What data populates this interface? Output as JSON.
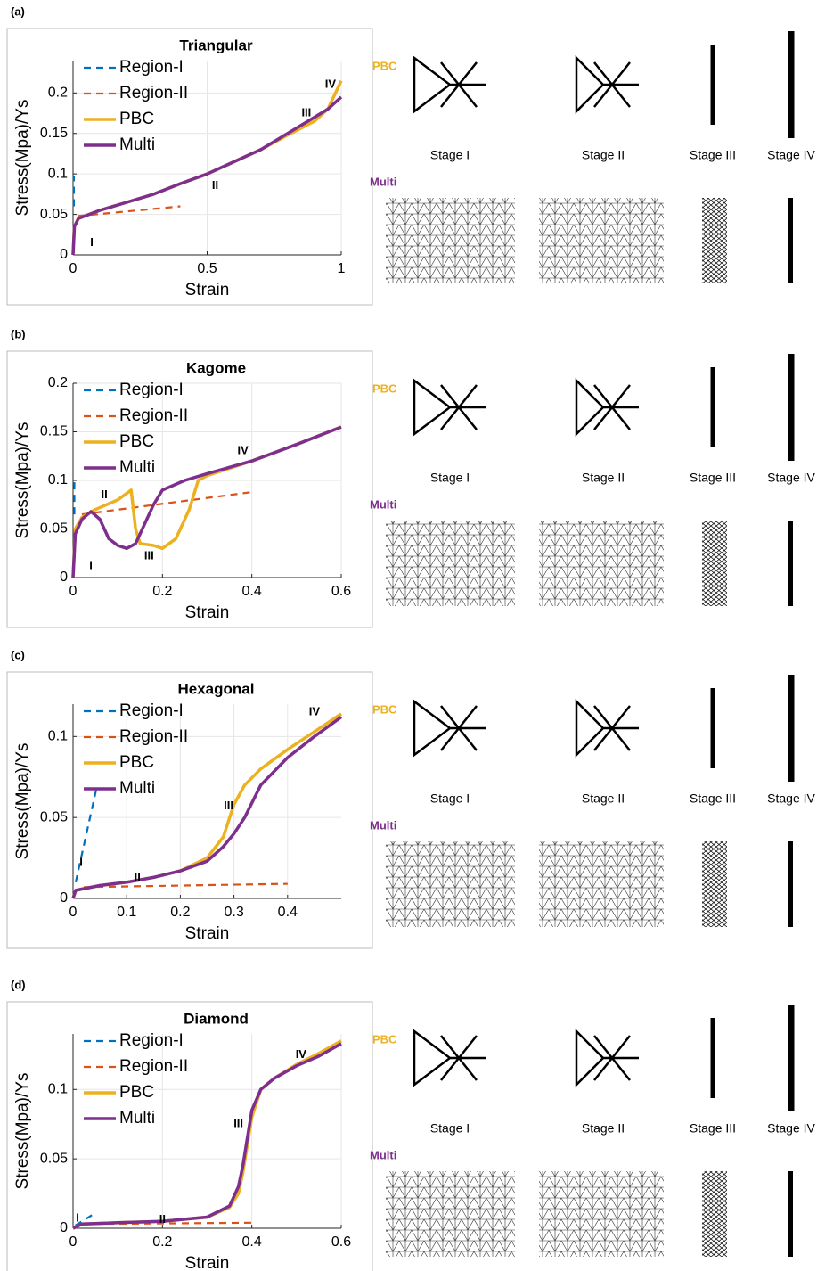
{
  "chart_data": [
    {
      "type": "line",
      "panel": "(a)",
      "title": "Triangular",
      "x_label": "Strain",
      "y_label": "Stress(Mpa)/Ys",
      "xlim": [
        0,
        1
      ],
      "xticks": [
        0,
        0.5,
        1
      ],
      "ylim": [
        0,
        0.24
      ],
      "yticks": [
        0,
        0.05,
        0.1,
        0.15,
        0.2
      ],
      "grid": true,
      "legend": "upper left",
      "series": [
        {
          "name": "Region-I",
          "color": "#0072BD",
          "style": "dashed",
          "x": [
            0.003,
            0.003
          ],
          "values": [
            0.06,
            0.097
          ]
        },
        {
          "name": "Region-II",
          "color": "#D95319",
          "style": "dashed",
          "x": [
            0.02,
            0.4
          ],
          "values": [
            0.048,
            0.06
          ]
        },
        {
          "name": "PBC",
          "color": "#EDB120",
          "style": "solid",
          "x": [
            0,
            0.005,
            0.02,
            0.1,
            0.2,
            0.3,
            0.4,
            0.5,
            0.6,
            0.7,
            0.8,
            0.9,
            0.95,
            1.0
          ],
          "values": [
            0,
            0.035,
            0.045,
            0.055,
            0.065,
            0.075,
            0.088,
            0.1,
            0.115,
            0.13,
            0.148,
            0.165,
            0.18,
            0.215
          ]
        },
        {
          "name": "Multi",
          "color": "#7E2F8E",
          "style": "solid",
          "x": [
            0,
            0.005,
            0.02,
            0.1,
            0.2,
            0.3,
            0.4,
            0.5,
            0.6,
            0.7,
            0.8,
            0.9,
            0.95,
            1.0
          ],
          "values": [
            0,
            0.035,
            0.045,
            0.055,
            0.065,
            0.075,
            0.088,
            0.1,
            0.115,
            0.13,
            0.15,
            0.17,
            0.18,
            0.195
          ]
        }
      ],
      "annotations": [
        {
          "text": "I",
          "x": 0.07,
          "y": 0.015
        },
        {
          "text": "II",
          "x": 0.53,
          "y": 0.085
        },
        {
          "text": "III",
          "x": 0.87,
          "y": 0.175
        },
        {
          "text": "IV",
          "x": 0.96,
          "y": 0.21
        }
      ],
      "row_labels": [
        "PBC",
        "Multi"
      ],
      "stages": [
        "Stage I",
        "Stage II",
        "Stage III",
        "Stage IV"
      ]
    },
    {
      "type": "line",
      "panel": "(b)",
      "title": "Kagome",
      "x_label": "Strain",
      "y_label": "Stress(Mpa)/Ys",
      "xlim": [
        0,
        0.6
      ],
      "xticks": [
        0,
        0.2,
        0.4,
        0.6
      ],
      "ylim": [
        0,
        0.2
      ],
      "yticks": [
        0,
        0.05,
        0.1,
        0.15,
        0.2
      ],
      "grid": true,
      "legend": "upper left",
      "series": [
        {
          "name": "Region-I",
          "color": "#0072BD",
          "style": "dashed",
          "x": [
            0.003,
            0.003
          ],
          "values": [
            0.065,
            0.1
          ]
        },
        {
          "name": "Region-II",
          "color": "#D95319",
          "style": "dashed",
          "x": [
            0.02,
            0.4
          ],
          "values": [
            0.065,
            0.088
          ]
        },
        {
          "name": "PBC",
          "color": "#EDB120",
          "style": "solid",
          "x": [
            0,
            0.005,
            0.02,
            0.05,
            0.1,
            0.13,
            0.14,
            0.15,
            0.18,
            0.2,
            0.23,
            0.26,
            0.28,
            0.3,
            0.4,
            0.5,
            0.6
          ],
          "values": [
            0,
            0.05,
            0.062,
            0.07,
            0.08,
            0.09,
            0.05,
            0.035,
            0.033,
            0.03,
            0.04,
            0.07,
            0.1,
            0.105,
            0.12,
            0.137,
            0.155
          ]
        },
        {
          "name": "Multi",
          "color": "#7E2F8E",
          "style": "solid",
          "x": [
            0,
            0.005,
            0.02,
            0.04,
            0.06,
            0.08,
            0.1,
            0.12,
            0.14,
            0.16,
            0.18,
            0.2,
            0.25,
            0.3,
            0.4,
            0.5,
            0.6
          ],
          "values": [
            0,
            0.045,
            0.06,
            0.068,
            0.06,
            0.04,
            0.033,
            0.03,
            0.035,
            0.055,
            0.075,
            0.09,
            0.1,
            0.107,
            0.12,
            0.137,
            0.155
          ]
        }
      ],
      "annotations": [
        {
          "text": "I",
          "x": 0.04,
          "y": 0.012
        },
        {
          "text": "II",
          "x": 0.07,
          "y": 0.085
        },
        {
          "text": "III",
          "x": 0.17,
          "y": 0.022
        },
        {
          "text": "IV",
          "x": 0.38,
          "y": 0.13
        }
      ],
      "row_labels": [
        "PBC",
        "Multi"
      ],
      "stages": [
        "Stage I",
        "Stage II",
        "Stage III",
        "Stage IV"
      ]
    },
    {
      "type": "line",
      "panel": "(c)",
      "title": "Hexagonal",
      "x_label": "Strain",
      "y_label": "Stress(Mpa)/Ys",
      "xlim": [
        0,
        0.5
      ],
      "xticks": [
        0,
        0.1,
        0.2,
        0.3,
        0.4
      ],
      "ylim": [
        0,
        0.12
      ],
      "yticks": [
        0,
        0.05,
        0.1
      ],
      "grid": true,
      "legend": "upper left",
      "series": [
        {
          "name": "Region-I",
          "color": "#0072BD",
          "style": "dashed",
          "x": [
            0.005,
            0.045
          ],
          "values": [
            0.01,
            0.07
          ]
        },
        {
          "name": "Region-II",
          "color": "#D95319",
          "style": "dashed",
          "x": [
            0.02,
            0.4
          ],
          "values": [
            0.007,
            0.009
          ]
        },
        {
          "name": "PBC",
          "color": "#EDB120",
          "style": "solid",
          "x": [
            0,
            0.005,
            0.05,
            0.1,
            0.15,
            0.2,
            0.25,
            0.28,
            0.3,
            0.32,
            0.35,
            0.4,
            0.45,
            0.5
          ],
          "values": [
            0,
            0.005,
            0.008,
            0.01,
            0.013,
            0.017,
            0.025,
            0.038,
            0.058,
            0.07,
            0.08,
            0.092,
            0.103,
            0.114
          ]
        },
        {
          "name": "Multi",
          "color": "#7E2F8E",
          "style": "solid",
          "x": [
            0,
            0.005,
            0.05,
            0.1,
            0.15,
            0.2,
            0.25,
            0.28,
            0.3,
            0.32,
            0.35,
            0.4,
            0.45,
            0.5
          ],
          "values": [
            0,
            0.005,
            0.008,
            0.01,
            0.013,
            0.017,
            0.023,
            0.032,
            0.04,
            0.05,
            0.07,
            0.087,
            0.1,
            0.112
          ]
        }
      ],
      "annotations": [
        {
          "text": "I",
          "x": 0.015,
          "y": 0.022
        },
        {
          "text": "II",
          "x": 0.12,
          "y": 0.013
        },
        {
          "text": "III",
          "x": 0.29,
          "y": 0.057
        },
        {
          "text": "IV",
          "x": 0.45,
          "y": 0.115
        }
      ],
      "row_labels": [
        "PBC",
        "Multi"
      ],
      "stages": [
        "Stage I",
        "Stage II",
        "Stage III",
        "Stage IV"
      ]
    },
    {
      "type": "line",
      "panel": "(d)",
      "title": "Diamond",
      "x_label": "Strain",
      "y_label": "Stress(Mpa)/Ys",
      "xlim": [
        0,
        0.6
      ],
      "xticks": [
        0,
        0.2,
        0.4,
        0.6
      ],
      "ylim": [
        0,
        0.14
      ],
      "yticks": [
        0,
        0.05,
        0.1
      ],
      "grid": true,
      "legend": "upper left",
      "series": [
        {
          "name": "Region-I",
          "color": "#0072BD",
          "style": "dashed",
          "x": [
            0.005,
            0.045
          ],
          "values": [
            0.002,
            0.01
          ]
        },
        {
          "name": "Region-II",
          "color": "#D95319",
          "style": "dashed",
          "x": [
            0.02,
            0.4
          ],
          "values": [
            0.003,
            0.004
          ]
        },
        {
          "name": "PBC",
          "color": "#EDB120",
          "style": "solid",
          "x": [
            0,
            0.02,
            0.1,
            0.2,
            0.3,
            0.35,
            0.37,
            0.38,
            0.39,
            0.4,
            0.42,
            0.45,
            0.5,
            0.55,
            0.6
          ],
          "values": [
            0,
            0.003,
            0.004,
            0.005,
            0.008,
            0.015,
            0.025,
            0.04,
            0.06,
            0.08,
            0.1,
            0.108,
            0.118,
            0.126,
            0.135
          ]
        },
        {
          "name": "Multi",
          "color": "#7E2F8E",
          "style": "solid",
          "x": [
            0,
            0.02,
            0.1,
            0.2,
            0.3,
            0.35,
            0.37,
            0.38,
            0.39,
            0.4,
            0.42,
            0.45,
            0.5,
            0.55,
            0.6
          ],
          "values": [
            0,
            0.003,
            0.004,
            0.005,
            0.008,
            0.016,
            0.03,
            0.045,
            0.065,
            0.085,
            0.1,
            0.108,
            0.117,
            0.124,
            0.133
          ]
        }
      ],
      "annotations": [
        {
          "text": "I",
          "x": 0.01,
          "y": 0.007
        },
        {
          "text": "II",
          "x": 0.2,
          "y": 0.006
        },
        {
          "text": "III",
          "x": 0.37,
          "y": 0.075
        },
        {
          "text": "IV",
          "x": 0.51,
          "y": 0.125
        }
      ],
      "row_labels": [
        "PBC",
        "Multi"
      ],
      "stages": [
        "Stage I",
        "Stage II",
        "Stage III",
        "Stage IV"
      ]
    }
  ]
}
